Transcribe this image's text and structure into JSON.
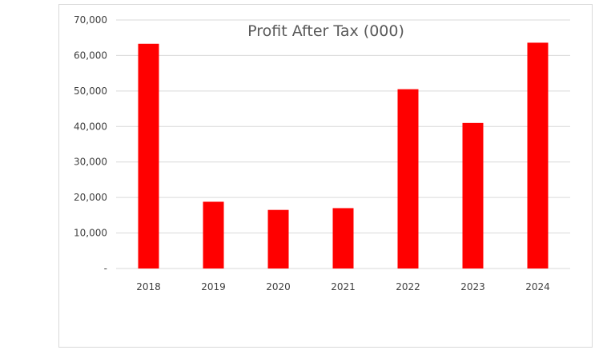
{
  "chart_data": {
    "type": "bar",
    "title": "Profit After Tax (000)",
    "xlabel": "",
    "ylabel": "",
    "categories": [
      "2018",
      "2019",
      "2020",
      "2021",
      "2022",
      "2023",
      "2024"
    ],
    "values": [
      63300,
      18800,
      16500,
      17000,
      50500,
      41000,
      63600
    ],
    "ylim": [
      0,
      70000
    ],
    "yticks": [
      0,
      10000,
      20000,
      30000,
      40000,
      50000,
      60000,
      70000
    ],
    "ytick_labels": [
      "-",
      "10,000",
      "20,000",
      "30,000",
      "40,000",
      "50,000",
      "60,000",
      "70,000"
    ],
    "grid": true,
    "legend": "none",
    "bar_color": "#ff0000",
    "grid_color": "#d9d9d9"
  }
}
